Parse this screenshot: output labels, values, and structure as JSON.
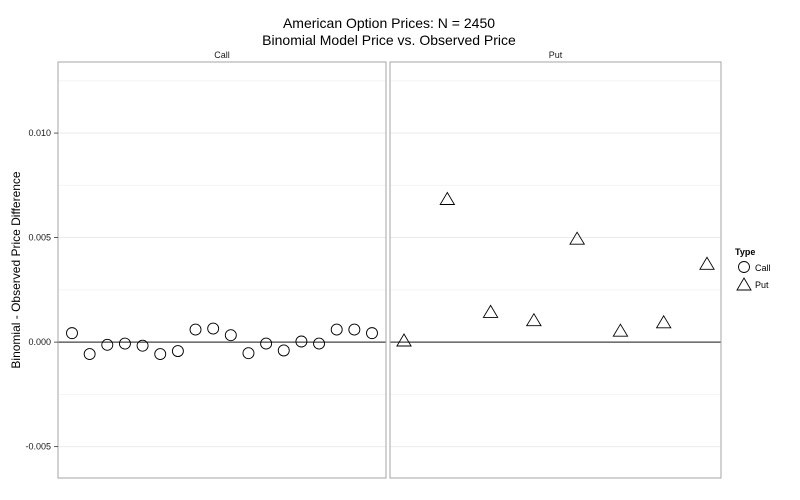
{
  "chart_data": {
    "type": "scatter",
    "title": "American Option Prices: N = 2450",
    "subtitle": "Binomial Model Price vs. Observed Price",
    "ylabel": "Binomial - Observed Price Difference",
    "ylim": [
      -0.0065,
      0.0134
    ],
    "yticks": [
      -0.005,
      0.0,
      0.005,
      0.01
    ],
    "ytick_labels": [
      "-0.005",
      "0.000",
      "0.005",
      "0.010"
    ],
    "hline": 0.0,
    "grid": true,
    "legend_position": "right",
    "legend": {
      "title": "Type",
      "entries": [
        {
          "label": "Call",
          "shape": "circle"
        },
        {
          "label": "Put",
          "shape": "triangle"
        }
      ]
    },
    "facets": [
      {
        "strip": "Call",
        "shape": "circle",
        "values": [
          0.00043,
          -0.00057,
          -0.00013,
          -7e-05,
          -0.00017,
          -0.00057,
          -0.00043,
          0.0006,
          0.00065,
          0.00033,
          -0.00053,
          -7e-05,
          -0.0004,
          3e-05,
          -7e-05,
          0.0006,
          0.0006,
          0.00043
        ]
      },
      {
        "strip": "Put",
        "shape": "triangle",
        "values": [
          3e-05,
          0.0068,
          0.0014,
          0.001,
          0.0049,
          0.0005,
          0.0009,
          0.0037
        ]
      }
    ]
  }
}
